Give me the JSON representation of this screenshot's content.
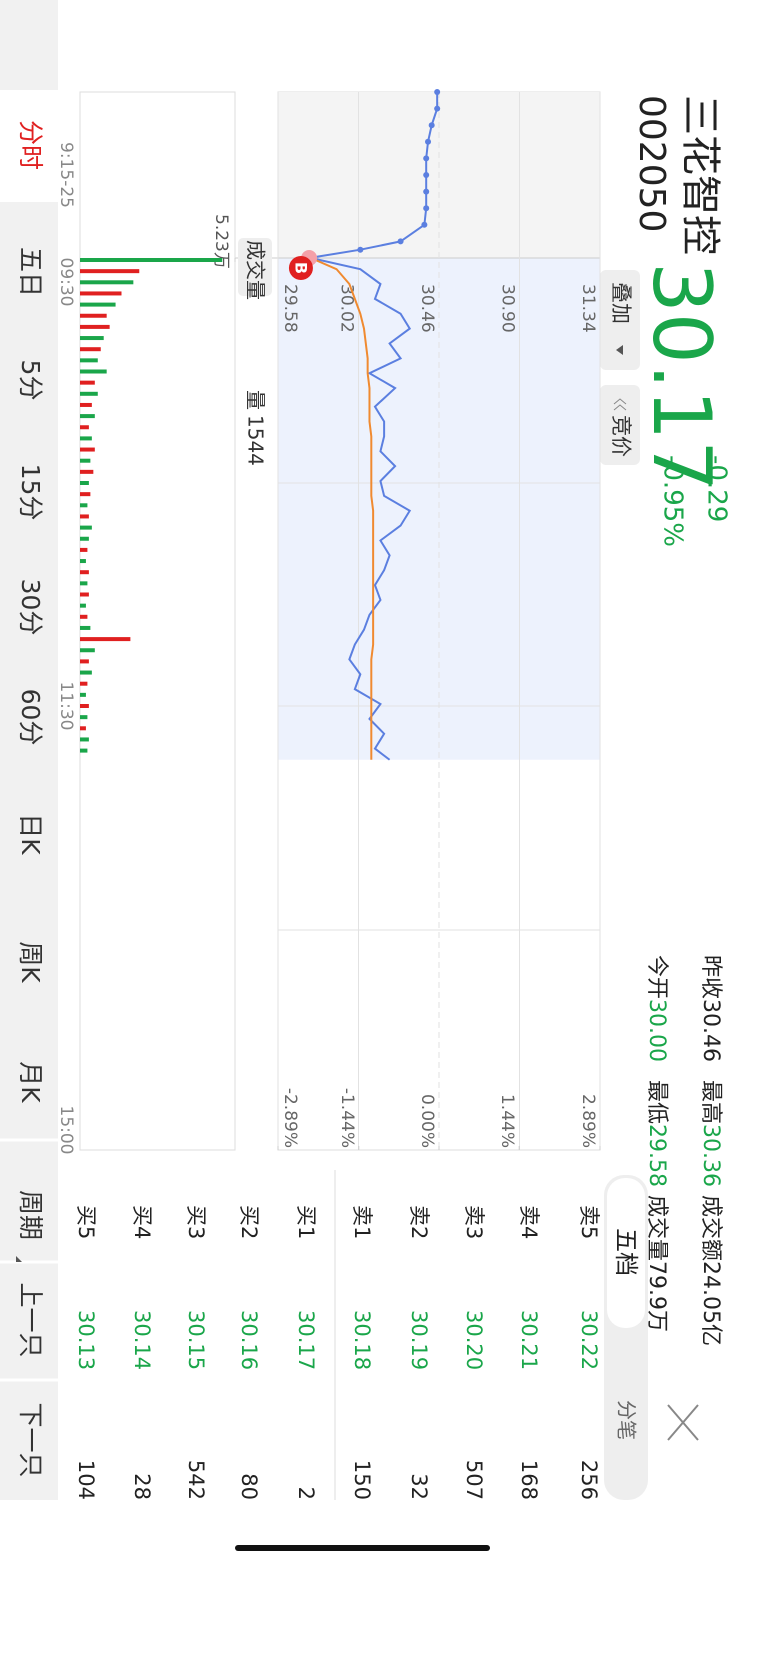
{
  "header": {
    "name": "三花智控",
    "code": "002050",
    "price": "30.17",
    "change": "-0.29",
    "change_pct": "-0.95%",
    "buttons": [
      "叠加",
      "竞价"
    ],
    "close": "×"
  },
  "stats": [
    {
      "label": "昨收",
      "value": "30.46"
    },
    {
      "label": "今开",
      "value": "30.00"
    },
    {
      "label": "最高",
      "value": "30.36"
    },
    {
      "label": "最低",
      "value": "29.58"
    },
    {
      "label": "成交额",
      "value": "24.05亿"
    },
    {
      "label": "成交量",
      "value": "79.9万"
    }
  ],
  "order_book": {
    "tabs": [
      "五档",
      "分笔"
    ],
    "rows": [
      [
        "卖5",
        "30.22",
        "256"
      ],
      [
        "卖4",
        "30.21",
        "168"
      ],
      [
        "卖3",
        "30.20",
        "507"
      ],
      [
        "卖2",
        "30.19",
        "32"
      ],
      [
        "卖1",
        "30.18",
        "150"
      ],
      [
        "买1",
        "30.17",
        "2"
      ],
      [
        "买2",
        "30.16",
        "80"
      ],
      [
        "买3",
        "30.15",
        "542"
      ],
      [
        "买4",
        "30.14",
        "28"
      ],
      [
        "买5",
        "30.13",
        "104"
      ]
    ]
  },
  "tabs": [
    "分时",
    "五日",
    "5分",
    "15分",
    "30分",
    "60分",
    "日K",
    "周K",
    "月K",
    "周期",
    "上一只",
    "下一只"
  ],
  "chart_data": {
    "type": "line",
    "ylim": [
      29.58,
      31.34
    ],
    "yticks": [
      31.34,
      {
        "value": 30.9,
        "label": "30.90"
      },
      30.46,
      30.02,
      29.58
    ],
    "y2lim": [
      -2.89,
      2.89
    ],
    "y2ticks": [
      {
        "value": 2.89,
        "label": "2.89%"
      },
      {
        "value": 1.44,
        "label": "1.44%"
      },
      {
        "value": 0,
        "label": "0.00%"
      },
      {
        "value": -1.44,
        "label": "-1.44%"
      },
      {
        "value": -2.89,
        "label": "-2.89%"
      }
    ],
    "xlim": [
      0,
      240
    ],
    "time_labels": [
      "9:15-25",
      "09:30",
      "11:30",
      "15:00"
    ],
    "marker": "B",
    "auction": {
      "color": "#5b7fe0",
      "xlim": [
        0,
        10
      ],
      "x": [
        0,
        1,
        2,
        3,
        4,
        5,
        6,
        7,
        8,
        9,
        9.5,
        10
      ],
      "values": [
        30.45,
        30.45,
        30.42,
        30.4,
        30.39,
        30.39,
        30.39,
        30.39,
        30.38,
        30.25,
        30.03,
        29.75
      ]
    },
    "series": [
      {
        "color": "#5b7fe0",
        "x": [
          0,
          3,
          7,
          11,
          15,
          19,
          23,
          27,
          31,
          35,
          40,
          44,
          48,
          52,
          56,
          60,
          64,
          68,
          72,
          76,
          80,
          84,
          88,
          92,
          96,
          100,
          104,
          108,
          112,
          116,
          120,
          124,
          128,
          132,
          135
        ],
        "values": [
          29.76,
          30.03,
          30.14,
          30.11,
          30.25,
          30.3,
          30.19,
          30.25,
          30.08,
          30.22,
          30.11,
          30.16,
          30.16,
          30.14,
          30.22,
          30.14,
          30.16,
          30.3,
          30.25,
          30.14,
          30.19,
          30.16,
          30.11,
          30.14,
          30.08,
          30.05,
          30,
          29.97,
          30.03,
          30,
          30.14,
          30.08,
          30.16,
          30.11,
          30.19
        ]
      },
      {
        "color": "#f08a30",
        "x": [
          0,
          3,
          7,
          11,
          15,
          19,
          23,
          27,
          31,
          35,
          40,
          44,
          48,
          52,
          56,
          60,
          64,
          68,
          72,
          76,
          80,
          84,
          88,
          92,
          96,
          100,
          104,
          108,
          112,
          116,
          120,
          124,
          128,
          132,
          135
        ],
        "values": [
          29.76,
          29.9,
          29.97,
          30.0,
          30.03,
          30.05,
          30.06,
          30.07,
          30.07,
          30.08,
          30.08,
          30.08,
          30.09,
          30.09,
          30.09,
          30.09,
          30.09,
          30.1,
          30.1,
          30.1,
          30.1,
          30.1,
          30.1,
          30.1,
          30.1,
          30.1,
          30.1,
          30.09,
          30.09,
          30.09,
          30.09,
          30.09,
          30.09,
          30.09,
          30.09
        ]
      }
    ],
    "volume": {
      "ylim": [
        0,
        52300
      ],
      "yticks": [
        {
          "value": 52300,
          "label": "5.23万"
        }
      ],
      "label": "成交量",
      "current_label": "量",
      "current": "1544",
      "x": [
        0,
        3,
        6,
        9,
        12,
        15,
        18,
        21,
        24,
        27,
        30,
        33,
        36,
        39,
        42,
        45,
        48,
        51,
        54,
        57,
        60,
        63,
        66,
        69,
        72,
        75,
        78,
        81,
        84,
        87,
        90,
        93,
        96,
        99,
        102,
        105,
        108,
        111,
        114,
        117,
        120,
        123,
        126,
        129,
        132
      ],
      "values": [
        48000,
        20000,
        18000,
        14000,
        12000,
        9000,
        10000,
        8000,
        7000,
        6000,
        9000,
        5000,
        6000,
        4000,
        5000,
        3000,
        4000,
        5000,
        3500,
        4500,
        3000,
        3500,
        2500,
        3000,
        4000,
        3000,
        2500,
        2000,
        3000,
        2500,
        3000,
        2000,
        2500,
        3500,
        17000,
        5000,
        3000,
        4000,
        2500,
        2000,
        3000,
        2500,
        2000,
        3000,
        2500
      ],
      "colors": [
        "#1aa64a",
        "#e02020",
        "#1aa64a",
        "#e02020",
        "#1aa64a",
        "#e02020",
        "#e02020",
        "#1aa64a",
        "#e02020",
        "#1aa64a",
        "#1aa64a",
        "#e02020",
        "#1aa64a",
        "#e02020",
        "#1aa64a",
        "#e02020",
        "#1aa64a",
        "#e02020",
        "#1aa64a",
        "#e02020",
        "#1aa64a",
        "#e02020",
        "#1aa64a",
        "#e02020",
        "#1aa64a",
        "#1aa64a",
        "#e02020",
        "#1aa64a",
        "#e02020",
        "#1aa64a",
        "#e02020",
        "#1aa64a",
        "#e02020",
        "#1aa64a",
        "#e02020",
        "#1aa64a",
        "#e02020",
        "#1aa64a",
        "#e02020",
        "#1aa64a",
        "#e02020",
        "#1aa64a",
        "#e02020",
        "#1aa64a",
        "#1aa64a"
      ]
    }
  }
}
